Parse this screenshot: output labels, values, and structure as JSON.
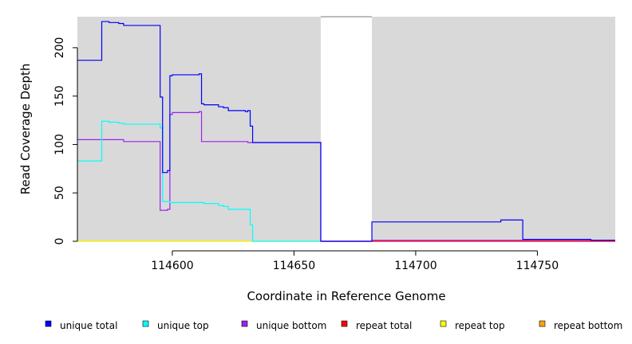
{
  "chart_data": {
    "type": "line",
    "title": "",
    "xlabel": "Coordinate in Reference Genome",
    "ylabel": "Read Coverage Depth",
    "xlim": [
      114561,
      114782
    ],
    "ylim": [
      0,
      232
    ],
    "x_ticks": [
      114600,
      114650,
      114700,
      114750
    ],
    "y_ticks": [
      0,
      50,
      100,
      150,
      200
    ],
    "grid": false,
    "background": "#d9d9d9",
    "gaps": [
      [
        114661,
        114682
      ]
    ],
    "legend_position": "bottom",
    "series": [
      {
        "name": "unique total",
        "color": "#0000ff",
        "points": [
          [
            114561,
            187
          ],
          [
            114571,
            187
          ],
          [
            114571,
            227
          ],
          [
            114574,
            227
          ],
          [
            114574,
            226
          ],
          [
            114578,
            226
          ],
          [
            114578,
            225
          ],
          [
            114580,
            225
          ],
          [
            114580,
            223
          ],
          [
            114595,
            223
          ],
          [
            114595,
            149
          ],
          [
            114596,
            149
          ],
          [
            114596,
            71
          ],
          [
            114598,
            71
          ],
          [
            114598,
            73
          ],
          [
            114599,
            73
          ],
          [
            114599,
            171
          ],
          [
            114600,
            171
          ],
          [
            114600,
            172
          ],
          [
            114611,
            172
          ],
          [
            114611,
            173
          ],
          [
            114612,
            173
          ],
          [
            114612,
            142
          ],
          [
            114613,
            142
          ],
          [
            114613,
            141
          ],
          [
            114619,
            141
          ],
          [
            114619,
            139
          ],
          [
            114621,
            139
          ],
          [
            114621,
            138
          ],
          [
            114623,
            138
          ],
          [
            114623,
            135
          ],
          [
            114630,
            135
          ],
          [
            114630,
            134
          ],
          [
            114631,
            134
          ],
          [
            114631,
            135
          ],
          [
            114632,
            135
          ],
          [
            114632,
            119
          ],
          [
            114633,
            119
          ],
          [
            114633,
            102
          ],
          [
            114661,
            102
          ],
          [
            114661,
            0
          ],
          [
            114682,
            0
          ],
          [
            114682,
            20
          ],
          [
            114735,
            20
          ],
          [
            114735,
            22
          ],
          [
            114744,
            22
          ],
          [
            114744,
            2
          ],
          [
            114772,
            2
          ],
          [
            114772,
            1
          ],
          [
            114782,
            1
          ]
        ]
      },
      {
        "name": "unique top",
        "color": "#00ffff",
        "points": [
          [
            114561,
            83
          ],
          [
            114571,
            83
          ],
          [
            114571,
            124
          ],
          [
            114574,
            124
          ],
          [
            114574,
            123
          ],
          [
            114578,
            123
          ],
          [
            114578,
            122
          ],
          [
            114580,
            122
          ],
          [
            114580,
            121
          ],
          [
            114595,
            121
          ],
          [
            114595,
            117
          ],
          [
            114596,
            117
          ],
          [
            114596,
            41
          ],
          [
            114599,
            41
          ],
          [
            114599,
            40
          ],
          [
            114613,
            40
          ],
          [
            114613,
            39
          ],
          [
            114619,
            39
          ],
          [
            114619,
            37
          ],
          [
            114621,
            37
          ],
          [
            114621,
            36
          ],
          [
            114623,
            36
          ],
          [
            114623,
            33
          ],
          [
            114632,
            33
          ],
          [
            114632,
            17
          ],
          [
            114633,
            17
          ],
          [
            114633,
            0
          ],
          [
            114661,
            0
          ]
        ]
      },
      {
        "name": "unique bottom",
        "color": "#a020f0",
        "points": [
          [
            114561,
            105
          ],
          [
            114580,
            105
          ],
          [
            114580,
            103
          ],
          [
            114595,
            103
          ],
          [
            114595,
            32
          ],
          [
            114598,
            32
          ],
          [
            114598,
            33
          ],
          [
            114599,
            33
          ],
          [
            114599,
            131
          ],
          [
            114600,
            131
          ],
          [
            114600,
            133
          ],
          [
            114611,
            133
          ],
          [
            114611,
            134
          ],
          [
            114612,
            134
          ],
          [
            114612,
            103
          ],
          [
            114631,
            103
          ],
          [
            114631,
            102
          ],
          [
            114661,
            102
          ],
          [
            114661,
            0
          ],
          [
            114682,
            0
          ],
          [
            114682,
            1
          ],
          [
            114782,
            1
          ]
        ]
      },
      {
        "name": "repeat total",
        "color": "#ff0000",
        "points": [
          [
            114661,
            0
          ],
          [
            114782,
            0
          ]
        ]
      },
      {
        "name": "repeat top",
        "color": "#ffff00",
        "points": [
          [
            114561,
            0
          ],
          [
            114782,
            0
          ]
        ]
      },
      {
        "name": "repeat bottom",
        "color": "#ffa500",
        "points": [
          [
            114561,
            0
          ],
          [
            114633,
            0
          ]
        ]
      }
    ]
  }
}
